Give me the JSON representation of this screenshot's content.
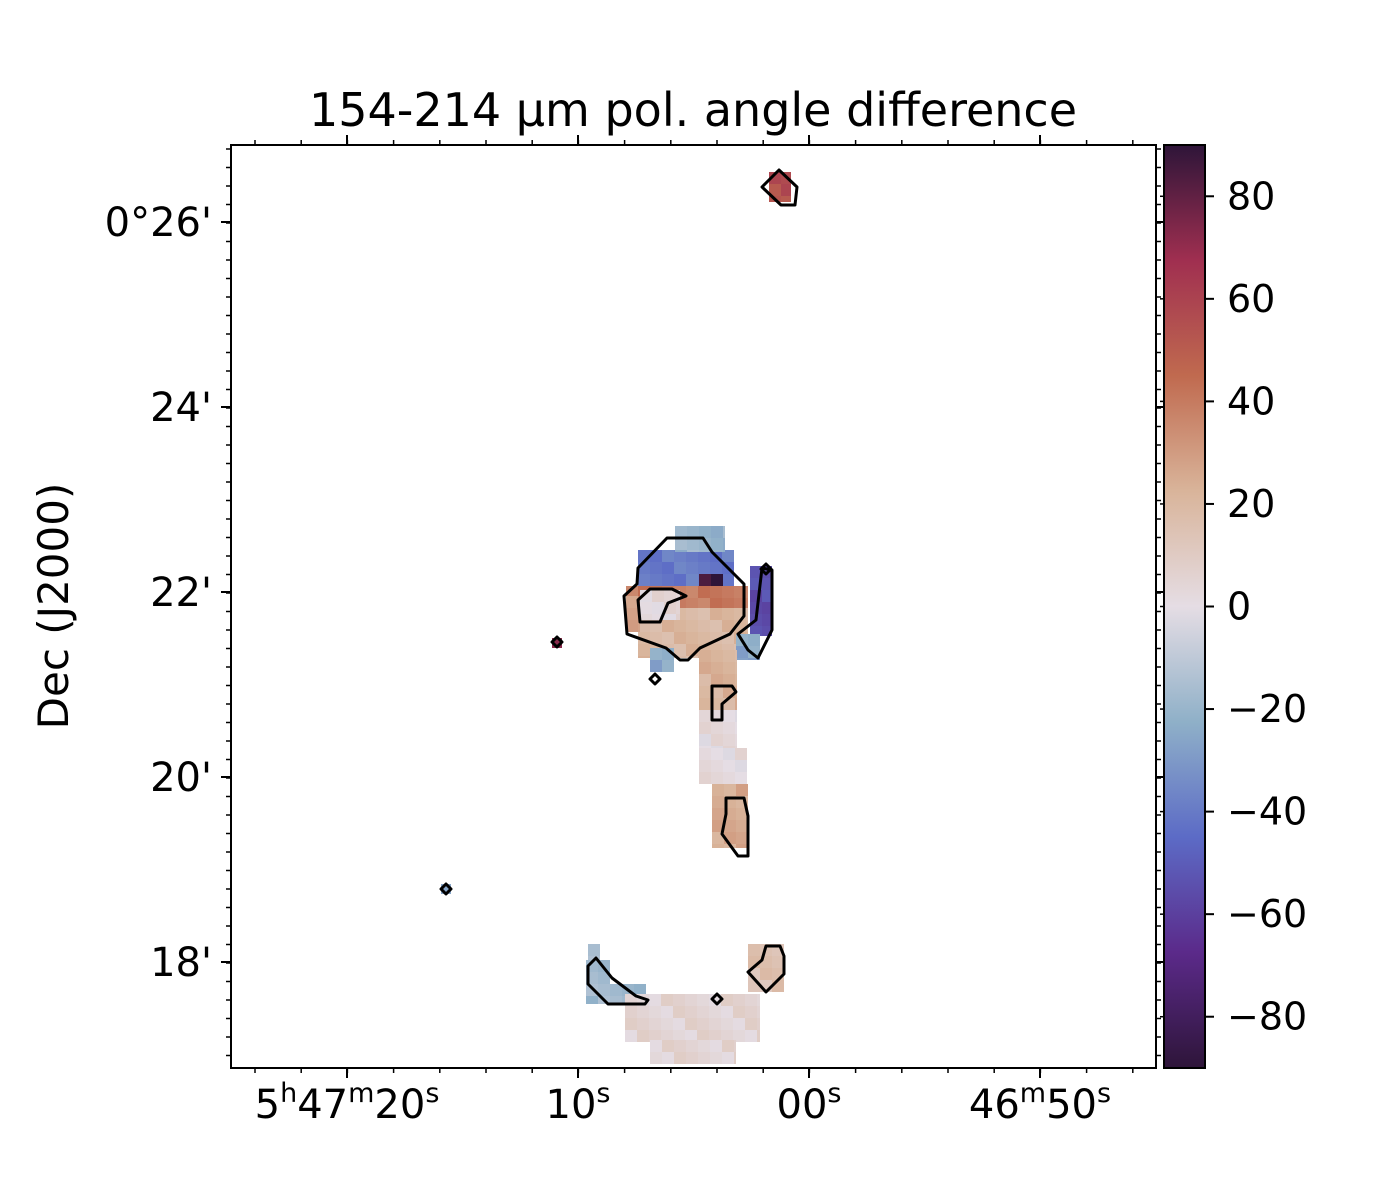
{
  "chart_data": {
    "type": "heatmap",
    "title": "154-214 μm pol. angle difference",
    "ylabel": "Dec (J2000)",
    "xlabel": "",
    "x_ticks": [
      {
        "parts": [
          [
            "5",
            "h"
          ],
          [
            "47",
            "m"
          ],
          [
            "20",
            "s"
          ]
        ],
        "text": "5h47m20s"
      },
      {
        "parts": [
          [
            "10",
            "s"
          ]
        ],
        "text": "10s"
      },
      {
        "parts": [
          [
            "00",
            "s"
          ]
        ],
        "text": "00s"
      },
      {
        "parts": [
          [
            "46",
            "m"
          ],
          [
            "50",
            "s"
          ]
        ],
        "text": "46m50s"
      }
    ],
    "y_ticks": [
      "0°26'",
      "24'",
      "22'",
      "20'",
      "18'"
    ],
    "colorbar": {
      "range": [
        -90,
        90
      ],
      "ticks": [
        80,
        60,
        40,
        20,
        0,
        -20,
        -40,
        -60,
        -80
      ],
      "tick_labels": [
        "80",
        "60",
        "40",
        "20",
        "0",
        "−20",
        "−40",
        "−60",
        "−80"
      ],
      "colormap": "twilight_shifted",
      "colors": [
        "#2e1539",
        "#5b2a8a",
        "#5c6bc6",
        "#8fb0c8",
        "#e5dde4",
        "#d9b49a",
        "#c06a4f",
        "#a02f50",
        "#2e1539"
      ]
    },
    "blobs": [
      {
        "region": "top (0°26')",
        "value": 55
      },
      {
        "region": "core north rim",
        "value": -40
      },
      {
        "region": "core top edge",
        "value": -20
      },
      {
        "region": "core center-north",
        "value": 40
      },
      {
        "region": "core center",
        "value": 20
      },
      {
        "region": "core left cell",
        "value": 30
      },
      {
        "region": "core inner hole",
        "value": 3
      },
      {
        "region": "core hot pixel",
        "value": 88
      },
      {
        "region": "core east strip",
        "value": -55
      },
      {
        "region": "core south cells",
        "value": -25
      },
      {
        "region": "filament 21'",
        "value": 22
      },
      {
        "region": "filament 20'",
        "value": 2
      },
      {
        "region": "filament 19.5'",
        "value": 25
      },
      {
        "region": "south-west arc",
        "value": -18
      },
      {
        "region": "south-east knot",
        "value": 15
      },
      {
        "region": "south base",
        "value": 5
      },
      {
        "region": "isolated point 21.5'",
        "value": 70
      },
      {
        "region": "isolated point 18.8'",
        "value": -30
      }
    ]
  }
}
